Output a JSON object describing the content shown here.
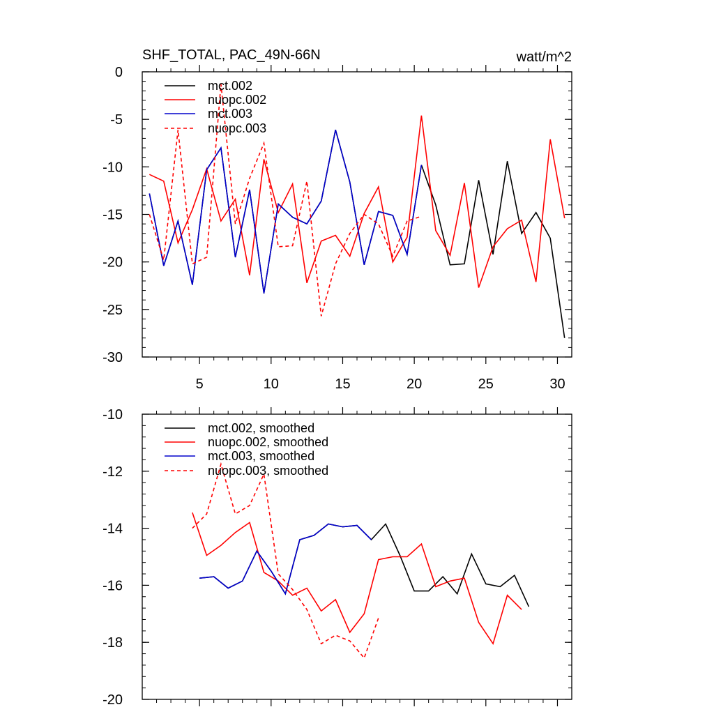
{
  "chart_data": [
    {
      "type": "line",
      "title_left": "SHF_TOTAL, PAC_49N-66N",
      "title_right": "watt/m^2",
      "xlim": [
        1,
        31
      ],
      "ylim": [
        -30,
        0
      ],
      "yticks": [
        0,
        -5,
        -10,
        -15,
        -20,
        -25,
        -30
      ],
      "ytick_labels": [
        "0",
        "-5",
        "-10",
        "-15",
        "-20",
        "-25",
        "-30"
      ],
      "xticks": [
        5,
        10,
        15,
        20,
        25,
        30
      ],
      "xtick_labels": [
        "5",
        "10",
        "15",
        "20",
        "25",
        "30"
      ],
      "series": [
        {
          "name": "mct.002",
          "color": "#000000",
          "dash": false,
          "x": [
            1.5,
            2.5,
            3.5,
            4.5,
            5.5,
            6.5,
            7.5,
            8.5,
            9.5,
            10.5,
            11.5,
            12.5,
            13.5,
            14.5,
            15.5,
            16.5,
            17.5,
            18.5,
            19.5,
            20.5,
            21.5,
            22.5,
            23.5,
            24.5,
            25.5,
            26.5,
            27.5,
            28.5,
            29.5,
            30.5
          ],
          "y": [
            -12.8,
            -20.4,
            -15.7,
            -22.4,
            -10.3,
            -8.0,
            -19.5,
            -12.4,
            -23.3,
            -13.9,
            -15.3,
            -16.0,
            -13.6,
            -6.1,
            -11.6,
            -20.3,
            -14.7,
            -15.1,
            -19.2,
            -9.8,
            -14.0,
            -20.3,
            -20.2,
            -11.4,
            -19.2,
            -9.4,
            -17.0,
            -14.8,
            -17.5,
            -28.0
          ]
        },
        {
          "name": "nuopc.002",
          "color": "#ff0000",
          "dash": false,
          "x": [
            1.5,
            2.5,
            3.5,
            4.5,
            5.5,
            6.5,
            7.5,
            8.5,
            9.5,
            10.5,
            11.5,
            12.5,
            13.5,
            14.5,
            15.5,
            16.5,
            17.5,
            18.5,
            19.5,
            20.5,
            21.5,
            22.5,
            23.5,
            24.5,
            25.5,
            26.5,
            27.5,
            28.5,
            29.5,
            30.5
          ],
          "y": [
            -10.8,
            -11.5,
            -18.0,
            -14.5,
            -10.2,
            -15.7,
            -13.4,
            -21.4,
            -9.2,
            -14.8,
            -11.8,
            -22.2,
            -17.8,
            -17.2,
            -19.4,
            -14.9,
            -12.1,
            -20.0,
            -17.4,
            -4.6,
            -16.7,
            -19.3,
            -11.7,
            -22.7,
            -18.4,
            -16.5,
            -15.6,
            -22.1,
            -7.1,
            -15.4
          ]
        },
        {
          "name": "mct.003",
          "color": "#0000cc",
          "dash": false,
          "x": [
            1.5,
            2.5,
            3.5,
            4.5,
            5.5,
            6.5,
            7.5,
            8.5,
            9.5,
            10.5,
            11.5,
            12.5,
            13.5,
            14.5,
            15.5,
            16.5,
            17.5,
            18.5,
            19.5,
            20.5
          ],
          "y": [
            -12.8,
            -20.4,
            -15.7,
            -22.4,
            -10.3,
            -8.0,
            -19.5,
            -12.4,
            -23.3,
            -13.9,
            -15.3,
            -16.0,
            -13.6,
            -6.1,
            -11.6,
            -20.3,
            -14.7,
            -15.1,
            -19.2,
            -9.8
          ]
        },
        {
          "name": "nuopc.003",
          "color": "#ff0000",
          "dash": true,
          "x": [
            1.5,
            2.5,
            3.5,
            4.5,
            5.5,
            6.5,
            7.5,
            8.5,
            9.5,
            10.5,
            11.5,
            12.5,
            13.5,
            14.5,
            15.5,
            16.5,
            17.5,
            18.5,
            19.5,
            20.5
          ],
          "y": [
            -15.0,
            -19.8,
            -6.1,
            -20.2,
            -19.5,
            -1.3,
            -16.0,
            -11.2,
            -7.5,
            -18.4,
            -18.3,
            -11.5,
            -25.7,
            -20.2,
            -17.0,
            -15.0,
            -16.0,
            -19.4,
            -15.7,
            -15.2
          ]
        }
      ]
    },
    {
      "type": "line",
      "title_left": "",
      "title_right": "",
      "xlim": [
        1,
        31
      ],
      "ylim": [
        -20,
        -10
      ],
      "yticks": [
        -10,
        -12,
        -14,
        -16,
        -18,
        -20
      ],
      "ytick_labels": [
        "-10",
        "-12",
        "-14",
        "-16",
        "-18",
        "-20"
      ],
      "xticks": [
        5,
        10,
        15,
        20,
        25,
        30
      ],
      "xtick_labels": [],
      "series": [
        {
          "name": "mct.002, smoothed",
          "color": "#000000",
          "dash": false,
          "x": [
            5.0,
            6.0,
            7.0,
            8.0,
            9.0,
            10.0,
            11.0,
            12.0,
            13.0,
            14.0,
            15.0,
            16.0,
            17.0,
            18.0,
            19.0,
            20.0,
            21.0,
            22.0,
            23.0,
            24.0,
            25.0,
            26.0,
            27.0,
            28.0
          ],
          "y": [
            -15.75,
            -15.7,
            -16.1,
            -15.85,
            -14.8,
            -15.5,
            -16.3,
            -14.4,
            -14.25,
            -13.85,
            -13.95,
            -13.9,
            -14.4,
            -13.85,
            -14.95,
            -16.2,
            -16.2,
            -15.7,
            -16.3,
            -14.9,
            -15.95,
            -16.05,
            -15.65,
            -16.75
          ]
        },
        {
          "name": "nuopc.002, smoothed",
          "color": "#ff0000",
          "dash": false,
          "x": [
            4.5,
            5.5,
            6.5,
            7.5,
            8.5,
            9.5,
            10.5,
            11.5,
            12.5,
            13.5,
            14.5,
            15.5,
            16.5,
            17.5,
            18.5,
            19.5,
            20.5,
            21.5,
            22.5,
            23.5,
            24.5,
            25.5,
            26.5,
            27.5
          ],
          "y": [
            -13.45,
            -14.95,
            -14.6,
            -14.15,
            -13.8,
            -15.55,
            -15.85,
            -16.35,
            -16.1,
            -16.9,
            -16.5,
            -17.65,
            -17.0,
            -15.1,
            -15.0,
            -15.0,
            -14.55,
            -16.05,
            -15.85,
            -15.75,
            -17.3,
            -18.05,
            -16.35,
            -16.85
          ]
        },
        {
          "name": "mct.003, smoothed",
          "color": "#0000cc",
          "dash": false,
          "x": [
            5.0,
            6.0,
            7.0,
            8.0,
            9.0,
            10.0,
            11.0,
            12.0,
            13.0,
            14.0,
            15.0,
            16.0,
            17.0
          ],
          "y": [
            -15.75,
            -15.7,
            -16.1,
            -15.85,
            -14.8,
            -15.5,
            -16.3,
            -14.4,
            -14.25,
            -13.85,
            -13.95,
            -13.9,
            -14.4
          ]
        },
        {
          "name": "nuopc.003, smoothed",
          "color": "#ff0000",
          "dash": true,
          "x": [
            4.5,
            5.5,
            6.5,
            7.5,
            8.5,
            9.5,
            10.5,
            11.5,
            12.5,
            13.5,
            14.5,
            15.5,
            16.5,
            17.5
          ],
          "y": [
            -14.0,
            -13.5,
            -11.75,
            -13.5,
            -13.2,
            -12.1,
            -15.6,
            -16.15,
            -16.85,
            -18.05,
            -17.75,
            -17.95,
            -18.55,
            -17.15
          ]
        }
      ]
    }
  ]
}
